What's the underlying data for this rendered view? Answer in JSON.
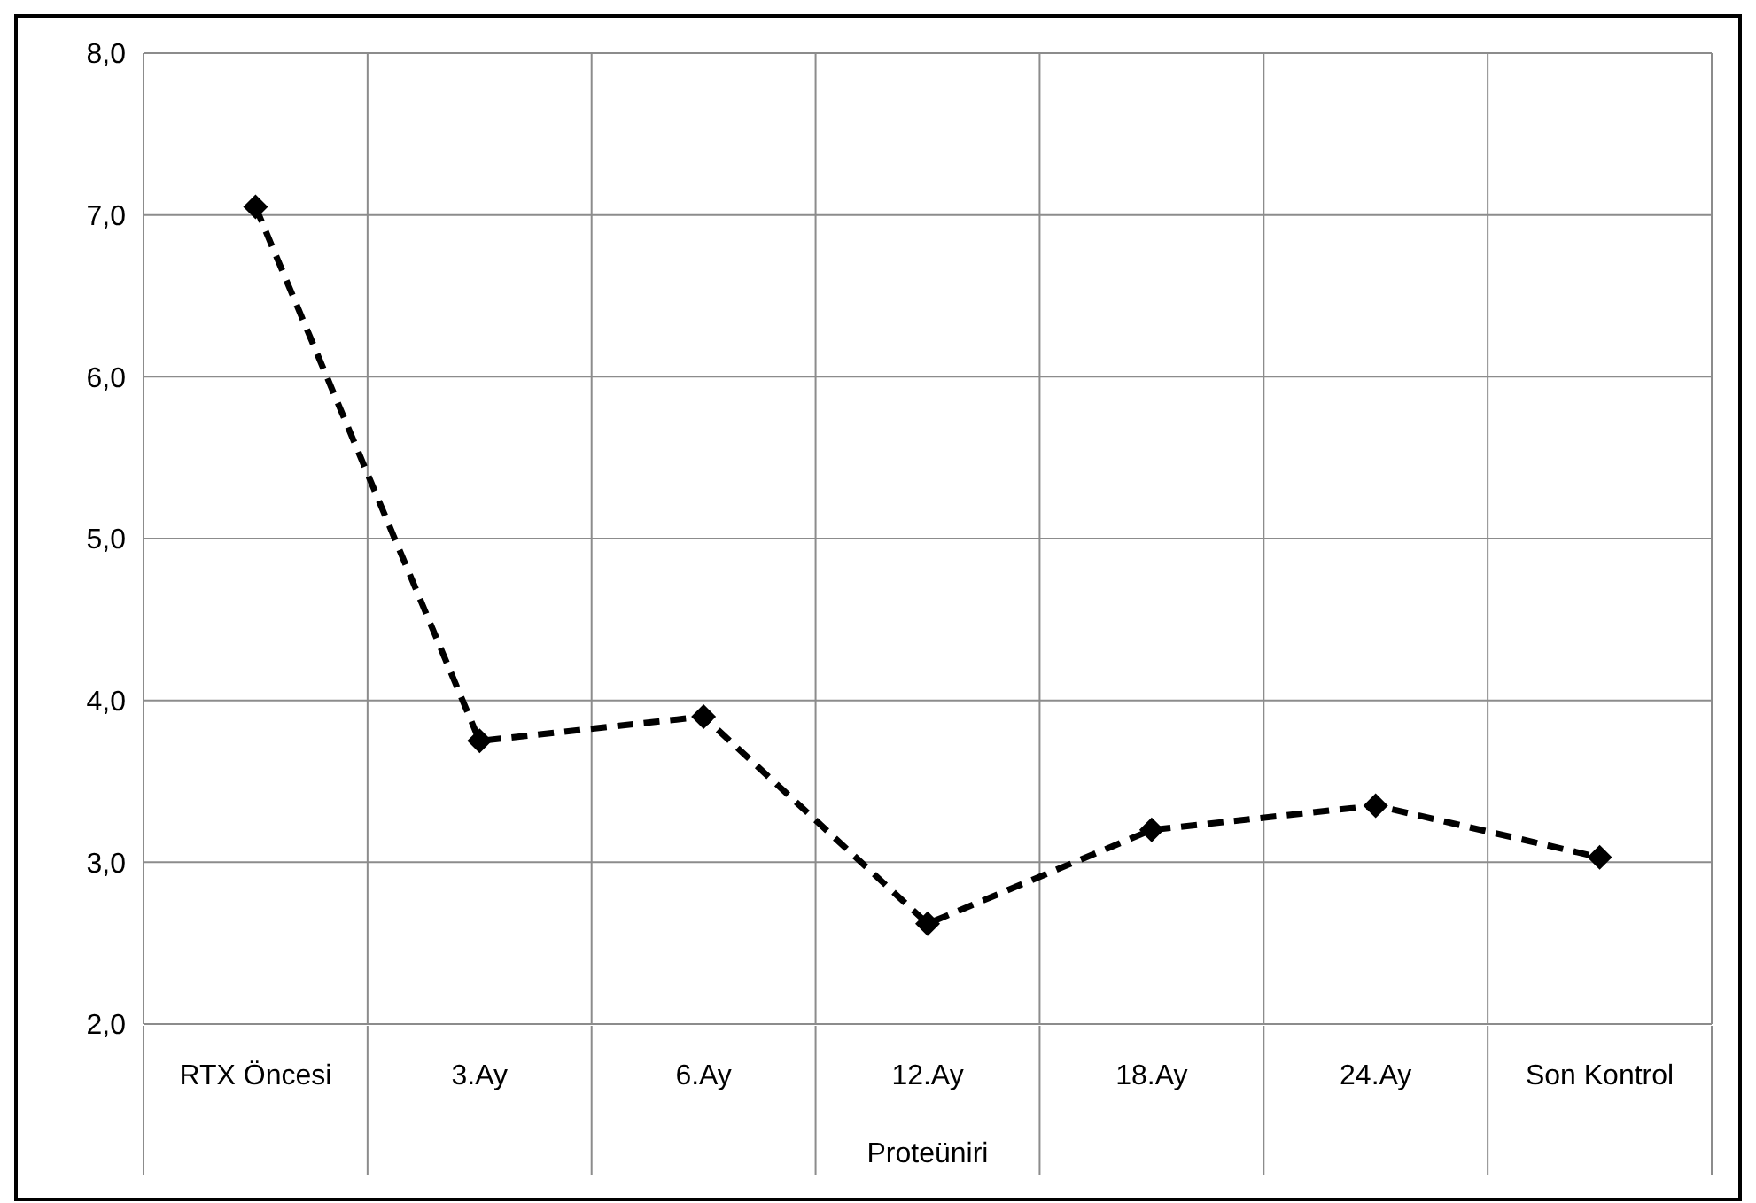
{
  "chart_data": {
    "type": "line",
    "xlabel": "Proteüniri",
    "categories": [
      "RTX Öncesi",
      "3.Ay",
      "6.Ay",
      "12.Ay",
      "18.Ay",
      "24.Ay",
      "Son Kontrol"
    ],
    "series": [
      {
        "color": "#000000",
        "values": [
          7.05,
          3.75,
          3.9,
          2.62,
          3.2,
          3.35,
          3.03
        ]
      }
    ],
    "ylim": [
      2,
      8
    ],
    "yticks": [
      {
        "value": 2,
        "label": "2,0"
      },
      {
        "value": 3,
        "label": "3,0"
      },
      {
        "value": 4,
        "label": "4,0"
      },
      {
        "value": 5,
        "label": "5,0"
      },
      {
        "value": 6,
        "label": "6,0"
      },
      {
        "value": 7,
        "label": "7,0"
      },
      {
        "value": 8,
        "label": "8,0"
      }
    ],
    "grid": true,
    "marker": "diamond",
    "line_style": "dashed"
  }
}
